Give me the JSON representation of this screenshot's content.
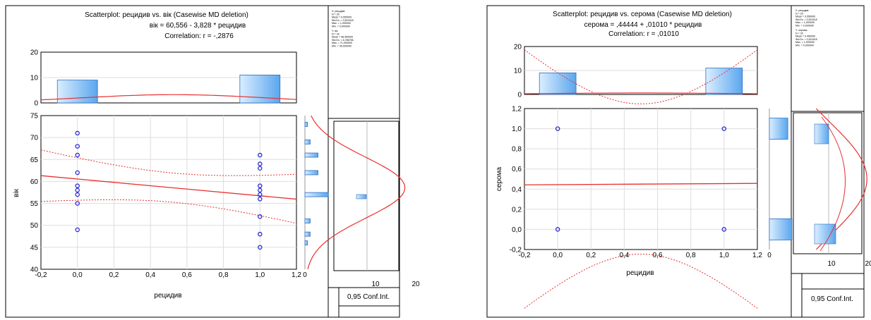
{
  "left_panel": {
    "title": "Scatterplot: рецидив  vs. вік    (Casewise MD deletion)",
    "equation": "вік    = 60,556 - 3,828  * рецидив",
    "correlation": "Correlation: r = -,2876",
    "conf_label": "0,95 Conf.Int.",
    "stats_text": [
      "X: рецидив",
      "N = 20",
      "Mean = 0,550000",
      "Std.Dv. = 0,510418",
      "Max. = 1,000000",
      "Min. = 0,000000",
      "Y: вік",
      "N = 20",
      "Mean = 58,450000",
      "Std.Dv. = 6,786756",
      "Max. = 71,000000",
      "Min. = 45,000000"
    ]
  },
  "right_panel": {
    "title": "Scatterplot: рецидив vs. серома   (Casewise MD deletion)",
    "equation": "серома   = ,44444 + ,01010 * рецидив",
    "correlation": "Correlation: r = ,01010",
    "conf_label": "0,95 Conf.Int.",
    "stats_text": [
      "X: рецидив",
      "N = 20",
      "Mean = 0,550000",
      "Std.Dv. = 0,510418",
      "Max. = 1,000000",
      "Min. = 0,000000",
      "Y: серома",
      "N = 20",
      "Mean = 0,450000",
      "Std.Dv. = 0,510418",
      "Max. = 1,000000",
      "Min. = 0,000000"
    ]
  },
  "chart_data": [
    {
      "type": "scatter",
      "title": "Scatterplot: рецидив  vs. вік    (Casewise MD deletion)",
      "xlabel": "рецидив",
      "ylabel": "вік",
      "xlim": [
        -0.2,
        1.2
      ],
      "ylim": [
        40,
        75
      ],
      "xticks": [
        "-0,2",
        "0,0",
        "0,2",
        "0,4",
        "0,6",
        "0,8",
        "1,0",
        "1,2"
      ],
      "yticks": [
        "40",
        "45",
        "50",
        "55",
        "60",
        "65",
        "70",
        "75"
      ],
      "points": [
        {
          "x": 0,
          "y": 71
        },
        {
          "x": 0,
          "y": 68
        },
        {
          "x": 0,
          "y": 66
        },
        {
          "x": 0,
          "y": 62
        },
        {
          "x": 0,
          "y": 59
        },
        {
          "x": 0,
          "y": 58
        },
        {
          "x": 0,
          "y": 57
        },
        {
          "x": 0,
          "y": 55
        },
        {
          "x": 0,
          "y": 49
        },
        {
          "x": 1,
          "y": 66
        },
        {
          "x": 1,
          "y": 64
        },
        {
          "x": 1,
          "y": 63
        },
        {
          "x": 1,
          "y": 59
        },
        {
          "x": 1,
          "y": 58
        },
        {
          "x": 1,
          "y": 57
        },
        {
          "x": 1,
          "y": 56
        },
        {
          "x": 1,
          "y": 52
        },
        {
          "x": 1,
          "y": 48
        },
        {
          "x": 1,
          "y": 45
        }
      ],
      "regression": {
        "intercept": 60.556,
        "slope": -3.828
      },
      "top_histogram": {
        "ylim": [
          0,
          20
        ],
        "yticks": [
          "0",
          "10",
          "20"
        ],
        "bars": [
          {
            "x": 0,
            "value": 9
          },
          {
            "x": 1,
            "value": 11
          }
        ]
      },
      "side_histogram": {
        "xtick": "0",
        "bins": [
          {
            "y": 46,
            "value": 1
          },
          {
            "y": 48,
            "value": 2
          },
          {
            "y": 51,
            "value": 2
          },
          {
            "y": 57,
            "value": 9
          },
          {
            "y": 62,
            "value": 5
          },
          {
            "y": 66,
            "value": 5
          },
          {
            "y": 69,
            "value": 2
          },
          {
            "y": 73,
            "value": 1
          }
        ]
      },
      "inset_xticks": [
        "10",
        "20"
      ]
    },
    {
      "type": "scatter",
      "title": "Scatterplot: рецидив vs. серома   (Casewise MD deletion)",
      "xlabel": "рецидив",
      "ylabel": "серома",
      "xlim": [
        -0.2,
        1.2
      ],
      "ylim": [
        -0.2,
        1.2
      ],
      "xticks": [
        "-0,2",
        "0,0",
        "0,2",
        "0,4",
        "0,6",
        "0,8",
        "1,0",
        "1,2"
      ],
      "yticks": [
        "-0,2",
        "0,0",
        "0,2",
        "0,4",
        "0,6",
        "0,8",
        "1,0",
        "1,2"
      ],
      "points": [
        {
          "x": 0,
          "y": 1
        },
        {
          "x": 1,
          "y": 1
        },
        {
          "x": 0,
          "y": 0
        },
        {
          "x": 1,
          "y": 0
        }
      ],
      "regression": {
        "intercept": 0.44444,
        "slope": 0.0101
      },
      "top_histogram": {
        "ylim": [
          0,
          20
        ],
        "yticks": [
          "0",
          "10",
          "20"
        ],
        "bars": [
          {
            "x": 0,
            "value": 9
          },
          {
            "x": 1,
            "value": 11
          }
        ]
      },
      "side_histogram": {
        "xtick": "0",
        "bins": [
          {
            "y": 0,
            "value": 11
          },
          {
            "y": 1,
            "value": 9
          }
        ]
      },
      "inset_xticks": [
        "10",
        "20"
      ]
    }
  ]
}
